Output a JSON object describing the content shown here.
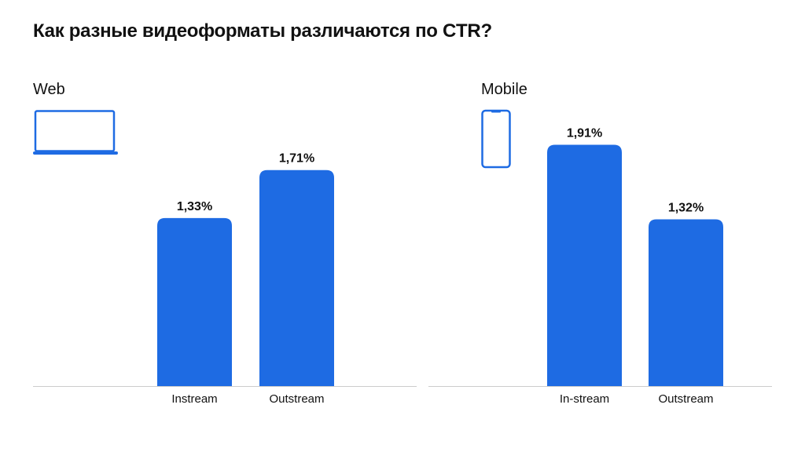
{
  "title": "Как разные видеоформаты различаются по CTR?",
  "colors": {
    "bar": "#1e6be3",
    "axis": "#cccccc",
    "icon": "#1e6be3"
  },
  "chart_data": [
    {
      "type": "bar",
      "title": "Web",
      "icon": "laptop-icon",
      "categories": [
        "Instream",
        "Outstream"
      ],
      "values": [
        1.33,
        1.71
      ],
      "labels": [
        "1,33%",
        "1,71%"
      ],
      "unit": "%"
    },
    {
      "type": "bar",
      "title": "Mobile",
      "icon": "smartphone-icon",
      "categories": [
        "In-stream",
        "Outstream"
      ],
      "values": [
        1.91,
        1.32
      ],
      "labels": [
        "1,91%",
        "1,32%"
      ],
      "unit": "%"
    }
  ]
}
